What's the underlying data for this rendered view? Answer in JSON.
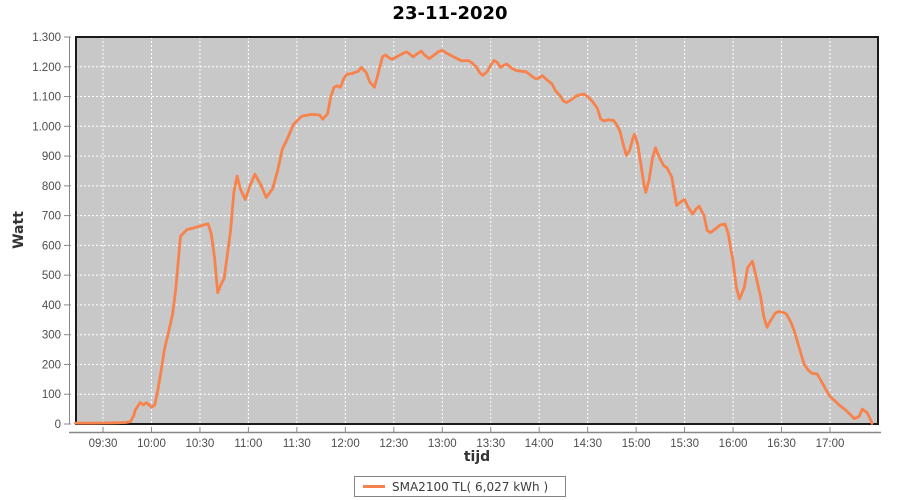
{
  "chart_data": {
    "type": "line",
    "title": "23-11-2020",
    "xlabel": "tijd",
    "ylabel": "Watt",
    "grid": "white dashed, on",
    "legend_position": "bottom-center",
    "plot_bg": "#c8c8c8",
    "ylim": [
      0,
      1300
    ],
    "y_ticks": [
      0,
      100,
      200,
      300,
      400,
      500,
      600,
      700,
      800,
      900,
      1000,
      1100,
      1200,
      1300
    ],
    "y_tick_labels": [
      "0",
      "100",
      "200",
      "300",
      "400",
      "500",
      "600",
      "700",
      "800",
      "900",
      "1.000",
      "1.100",
      "1.200",
      "1.300"
    ],
    "x_unit": "minutes after 09:00",
    "x_range": [
      13,
      506
    ],
    "x_ticks": [
      {
        "t": 30,
        "label": "09:30"
      },
      {
        "t": 60,
        "label": "10:00"
      },
      {
        "t": 90,
        "label": "10:30"
      },
      {
        "t": 120,
        "label": "11:00"
      },
      {
        "t": 150,
        "label": "11:30"
      },
      {
        "t": 180,
        "label": "12:00"
      },
      {
        "t": 210,
        "label": "12:30"
      },
      {
        "t": 240,
        "label": "13:00"
      },
      {
        "t": 270,
        "label": "13:30"
      },
      {
        "t": 300,
        "label": "14:00"
      },
      {
        "t": 330,
        "label": "14:30"
      },
      {
        "t": 360,
        "label": "15:00"
      },
      {
        "t": 390,
        "label": "15:30"
      },
      {
        "t": 420,
        "label": "16:00"
      },
      {
        "t": 450,
        "label": "16:30"
      },
      {
        "t": 480,
        "label": "17:00"
      }
    ],
    "series": [
      {
        "name": "SMA2100 TL( 6,027 kWh )",
        "color": "#f8824b",
        "points": [
          [
            13,
            3
          ],
          [
            25,
            3
          ],
          [
            38,
            4
          ],
          [
            44,
            5
          ],
          [
            47,
            8
          ],
          [
            49,
            28
          ],
          [
            50,
            47
          ],
          [
            53,
            72
          ],
          [
            55,
            64
          ],
          [
            57,
            72
          ],
          [
            60,
            56
          ],
          [
            62,
            64
          ],
          [
            64,
            115
          ],
          [
            66,
            180
          ],
          [
            68,
            250
          ],
          [
            70,
            295
          ],
          [
            73,
            367
          ],
          [
            75,
            451
          ],
          [
            78,
            631
          ],
          [
            82,
            653
          ],
          [
            87,
            660
          ],
          [
            92,
            668
          ],
          [
            95,
            673
          ],
          [
            97,
            640
          ],
          [
            99,
            560
          ],
          [
            101,
            441
          ],
          [
            103,
            468
          ],
          [
            105,
            490
          ],
          [
            109,
            650
          ],
          [
            111,
            780
          ],
          [
            113,
            833
          ],
          [
            115,
            790
          ],
          [
            118,
            754
          ],
          [
            121,
            800
          ],
          [
            124,
            839
          ],
          [
            128,
            800
          ],
          [
            131,
            761
          ],
          [
            135,
            790
          ],
          [
            138,
            849
          ],
          [
            141,
            923
          ],
          [
            144,
            957
          ],
          [
            148,
            1007
          ],
          [
            153,
            1034
          ],
          [
            159,
            1040
          ],
          [
            164,
            1038
          ],
          [
            166,
            1024
          ],
          [
            169,
            1042
          ],
          [
            171,
            1100
          ],
          [
            173,
            1131
          ],
          [
            175,
            1136
          ],
          [
            177,
            1131
          ],
          [
            179,
            1160
          ],
          [
            181,
            1175
          ],
          [
            184,
            1177
          ],
          [
            188,
            1185
          ],
          [
            190,
            1198
          ],
          [
            193,
            1180
          ],
          [
            195,
            1150
          ],
          [
            198,
            1131
          ],
          [
            200,
            1170
          ],
          [
            203,
            1234
          ],
          [
            205,
            1240
          ],
          [
            207,
            1230
          ],
          [
            209,
            1225
          ],
          [
            212,
            1234
          ],
          [
            214,
            1240
          ],
          [
            216,
            1246
          ],
          [
            218,
            1250
          ],
          [
            220,
            1242
          ],
          [
            222,
            1233
          ],
          [
            224,
            1242
          ],
          [
            227,
            1253
          ],
          [
            229,
            1240
          ],
          [
            232,
            1227
          ],
          [
            235,
            1240
          ],
          [
            238,
            1252
          ],
          [
            240,
            1255
          ],
          [
            243,
            1245
          ],
          [
            247,
            1233
          ],
          [
            250,
            1225
          ],
          [
            252,
            1220
          ],
          [
            256,
            1221
          ],
          [
            258,
            1215
          ],
          [
            261,
            1200
          ],
          [
            263,
            1182
          ],
          [
            265,
            1171
          ],
          [
            268,
            1185
          ],
          [
            270,
            1205
          ],
          [
            272,
            1221
          ],
          [
            274,
            1215
          ],
          [
            276,
            1198
          ],
          [
            278,
            1205
          ],
          [
            280,
            1209
          ],
          [
            283,
            1195
          ],
          [
            286,
            1187
          ],
          [
            289,
            1185
          ],
          [
            292,
            1183
          ],
          [
            295,
            1170
          ],
          [
            298,
            1159
          ],
          [
            300,
            1163
          ],
          [
            302,
            1170
          ],
          [
            305,
            1155
          ],
          [
            308,
            1142
          ],
          [
            310,
            1120
          ],
          [
            313,
            1102
          ],
          [
            315,
            1085
          ],
          [
            317,
            1080
          ],
          [
            320,
            1090
          ],
          [
            323,
            1102
          ],
          [
            326,
            1107
          ],
          [
            328,
            1108
          ],
          [
            331,
            1095
          ],
          [
            333,
            1083
          ],
          [
            336,
            1060
          ],
          [
            338,
            1025
          ],
          [
            340,
            1018
          ],
          [
            343,
            1022
          ],
          [
            346,
            1020
          ],
          [
            348,
            1005
          ],
          [
            350,
            984
          ],
          [
            352,
            940
          ],
          [
            354,
            902
          ],
          [
            356,
            920
          ],
          [
            358,
            960
          ],
          [
            359,
            973
          ],
          [
            361,
            940
          ],
          [
            363,
            870
          ],
          [
            365,
            800
          ],
          [
            366,
            778
          ],
          [
            368,
            820
          ],
          [
            370,
            890
          ],
          [
            372,
            928
          ],
          [
            374,
            900
          ],
          [
            377,
            868
          ],
          [
            379,
            861
          ],
          [
            382,
            830
          ],
          [
            384,
            770
          ],
          [
            385,
            734
          ],
          [
            388,
            748
          ],
          [
            390,
            754
          ],
          [
            392,
            730
          ],
          [
            395,
            705
          ],
          [
            397,
            722
          ],
          [
            399,
            732
          ],
          [
            402,
            700
          ],
          [
            404,
            650
          ],
          [
            406,
            643
          ],
          [
            409,
            655
          ],
          [
            412,
            668
          ],
          [
            415,
            672
          ],
          [
            417,
            640
          ],
          [
            420,
            545
          ],
          [
            422,
            460
          ],
          [
            424,
            420
          ],
          [
            427,
            460
          ],
          [
            429,
            525
          ],
          [
            432,
            547
          ],
          [
            434,
            500
          ],
          [
            437,
            430
          ],
          [
            439,
            360
          ],
          [
            441,
            325
          ],
          [
            443,
            345
          ],
          [
            446,
            372
          ],
          [
            448,
            378
          ],
          [
            451,
            375
          ],
          [
            453,
            370
          ],
          [
            456,
            340
          ],
          [
            458,
            310
          ],
          [
            461,
            255
          ],
          [
            464,
            200
          ],
          [
            467,
            178
          ],
          [
            469,
            170
          ],
          [
            472,
            168
          ],
          [
            474,
            150
          ],
          [
            477,
            120
          ],
          [
            480,
            92
          ],
          [
            483,
            78
          ],
          [
            486,
            62
          ],
          [
            489,
            50
          ],
          [
            492,
            35
          ],
          [
            495,
            18
          ],
          [
            498,
            25
          ],
          [
            500,
            50
          ],
          [
            503,
            38
          ],
          [
            505,
            15
          ],
          [
            506,
            2
          ]
        ]
      }
    ]
  },
  "colors": {
    "line": "#f8824b",
    "plot_bg": "#c8c8c8",
    "grid": "#ffffff",
    "plot_border": "#1a1a1a",
    "axis_line": "#888888",
    "tick_text": "#4d4d4d",
    "title_text": "#000000"
  }
}
